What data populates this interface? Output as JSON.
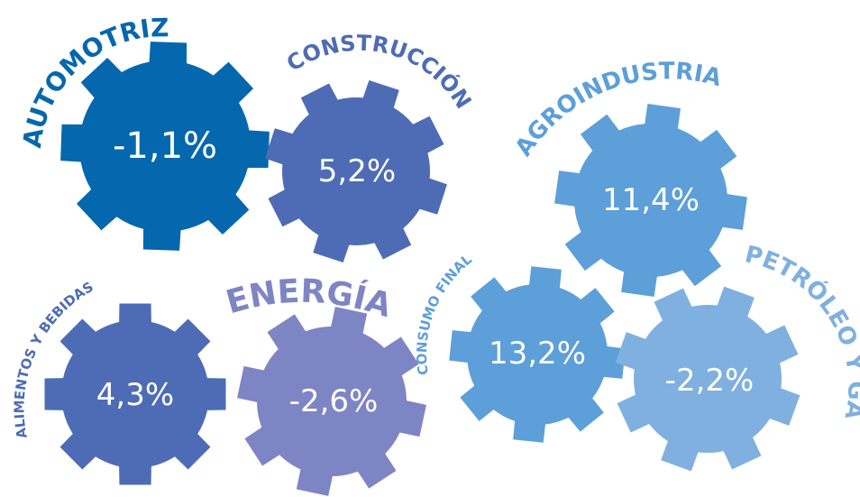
{
  "sectors": [
    {
      "id": "automotriz",
      "label": "AUTOMOTRIZ",
      "value": "-1,1%",
      "color": "#0567ad",
      "label_color": "#0567ad"
    },
    {
      "id": "construccion",
      "label": "CONSTRUCCIÓN",
      "value": "5,2%",
      "color": "#4d6cb5",
      "label_color": "#4d6cb5"
    },
    {
      "id": "agroindustria",
      "label": "AGROINDUSTRIA",
      "value": "11,4%",
      "color": "#5d9fd8",
      "label_color": "#5d9fd8"
    },
    {
      "id": "alimentos",
      "label": "ALIMENTOS Y BEBIDAS",
      "value": "4,3%",
      "color": "#4d6cb5",
      "label_color": "#4d6cb5"
    },
    {
      "id": "energia",
      "label": "ENERGÍA",
      "value": "-2,6%",
      "color": "#7e85c4",
      "label_color": "#7e85c4"
    },
    {
      "id": "consumo",
      "label": "CONSUMO FINAL",
      "value": "13,2%",
      "color": "#5d9fd8",
      "label_color": "#5d9fd8"
    },
    {
      "id": "petroleo",
      "label": "PETRÓLEO Y GAS",
      "value": "-2,2%",
      "color": "#7fb0e0",
      "label_color": "#7fb0e0"
    }
  ]
}
